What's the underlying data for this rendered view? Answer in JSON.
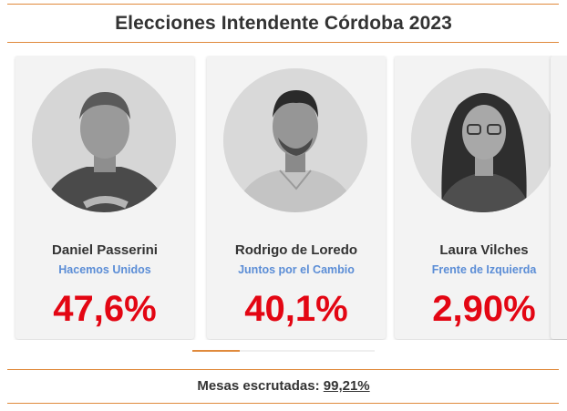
{
  "header": {
    "title": "Elecciones Intendente Córdoba 2023"
  },
  "candidates": [
    {
      "name": "Daniel Passerini",
      "party": "Hacemos Unidos",
      "percent": "47,6%"
    },
    {
      "name": "Rodrigo de Loredo",
      "party": "Juntos por el Cambio",
      "percent": "40,1%"
    },
    {
      "name": "Laura Vilches",
      "party": "Frente de Izquierda",
      "percent": "2,90%"
    }
  ],
  "footer": {
    "label": "Mesas escrutadas:",
    "value": "99,21%"
  },
  "colors": {
    "accent": "#e08a3c",
    "party": "#5b8dd6",
    "percent": "#e30613",
    "card": "#f3f3f3"
  }
}
